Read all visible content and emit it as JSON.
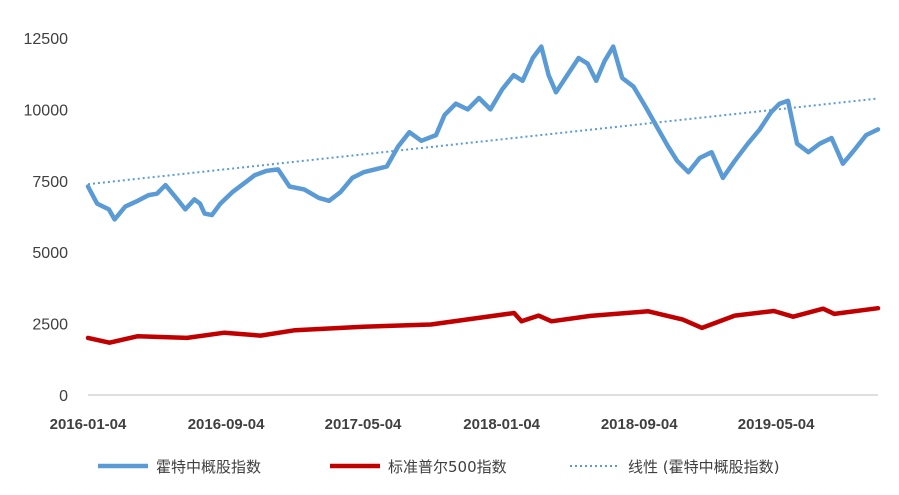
{
  "chart_data": {
    "type": "line",
    "y_ticks": [
      "0",
      "2500",
      "5000",
      "7500",
      "10000",
      "12500"
    ],
    "ylim": [
      0,
      12500
    ],
    "xlim": [
      "2016-01-04",
      "2019-10-31"
    ],
    "x_ticks": [
      "2016-01-04",
      "2016-09-04",
      "2017-05-04",
      "2018-01-04",
      "2018-09-04",
      "2019-05-04"
    ],
    "grid": false,
    "legend_position": "bottom",
    "series": [
      {
        "name": "霍特中概股指数",
        "color": "#5B9BD5",
        "style": "solid",
        "points": [
          [
            "2016-01-04",
            7300
          ],
          [
            "2016-01-20",
            6700
          ],
          [
            "2016-02-10",
            6500
          ],
          [
            "2016-02-20",
            6150
          ],
          [
            "2016-03-10",
            6600
          ],
          [
            "2016-04-01",
            6800
          ],
          [
            "2016-04-20",
            7000
          ],
          [
            "2016-05-05",
            7050
          ],
          [
            "2016-05-20",
            7350
          ],
          [
            "2016-06-10",
            6850
          ],
          [
            "2016-06-24",
            6500
          ],
          [
            "2016-07-10",
            6850
          ],
          [
            "2016-07-20",
            6700
          ],
          [
            "2016-07-28",
            6350
          ],
          [
            "2016-08-10",
            6300
          ],
          [
            "2016-08-25",
            6700
          ],
          [
            "2016-09-15",
            7100
          ],
          [
            "2016-10-05",
            7400
          ],
          [
            "2016-10-25",
            7700
          ],
          [
            "2016-11-15",
            7850
          ],
          [
            "2016-12-05",
            7900
          ],
          [
            "2016-12-25",
            7300
          ],
          [
            "2017-01-20",
            7200
          ],
          [
            "2017-02-15",
            6900
          ],
          [
            "2017-03-05",
            6800
          ],
          [
            "2017-03-25",
            7100
          ],
          [
            "2017-04-15",
            7600
          ],
          [
            "2017-05-05",
            7800
          ],
          [
            "2017-05-25",
            7900
          ],
          [
            "2017-06-15",
            8000
          ],
          [
            "2017-07-05",
            8700
          ],
          [
            "2017-07-25",
            9200
          ],
          [
            "2017-08-15",
            8900
          ],
          [
            "2017-09-10",
            9100
          ],
          [
            "2017-09-25",
            9800
          ],
          [
            "2017-10-15",
            10200
          ],
          [
            "2017-11-05",
            10000
          ],
          [
            "2017-11-25",
            10400
          ],
          [
            "2017-12-15",
            10000
          ],
          [
            "2018-01-05",
            10700
          ],
          [
            "2018-01-25",
            11200
          ],
          [
            "2018-02-10",
            11000
          ],
          [
            "2018-02-28",
            11800
          ],
          [
            "2018-03-15",
            12200
          ],
          [
            "2018-03-28",
            11200
          ],
          [
            "2018-04-10",
            10600
          ],
          [
            "2018-04-30",
            11200
          ],
          [
            "2018-05-20",
            11800
          ],
          [
            "2018-06-05",
            11600
          ],
          [
            "2018-06-20",
            11000
          ],
          [
            "2018-07-05",
            11700
          ],
          [
            "2018-07-20",
            12200
          ],
          [
            "2018-08-05",
            11100
          ],
          [
            "2018-08-25",
            10800
          ],
          [
            "2018-09-15",
            10100
          ],
          [
            "2018-10-05",
            9400
          ],
          [
            "2018-10-25",
            8700
          ],
          [
            "2018-11-10",
            8200
          ],
          [
            "2018-11-30",
            7800
          ],
          [
            "2018-12-20",
            8300
          ],
          [
            "2019-01-10",
            8500
          ],
          [
            "2019-01-30",
            7600
          ],
          [
            "2019-02-20",
            8200
          ],
          [
            "2019-03-15",
            8800
          ],
          [
            "2019-04-05",
            9300
          ],
          [
            "2019-04-25",
            9900
          ],
          [
            "2019-05-10",
            10200
          ],
          [
            "2019-05-25",
            10300
          ],
          [
            "2019-06-10",
            8800
          ],
          [
            "2019-06-30",
            8500
          ],
          [
            "2019-07-20",
            8800
          ],
          [
            "2019-08-10",
            9000
          ],
          [
            "2019-08-30",
            8100
          ],
          [
            "2019-09-20",
            8600
          ],
          [
            "2019-10-10",
            9100
          ],
          [
            "2019-10-31",
            9300
          ]
        ]
      },
      {
        "name": "标准普尔500指数",
        "color": "#C00000",
        "style": "solid",
        "points": [
          [
            "2016-01-04",
            2000
          ],
          [
            "2016-02-11",
            1830
          ],
          [
            "2016-04-01",
            2060
          ],
          [
            "2016-06-27",
            2000
          ],
          [
            "2016-09-01",
            2180
          ],
          [
            "2016-11-04",
            2080
          ],
          [
            "2017-01-04",
            2270
          ],
          [
            "2017-05-04",
            2390
          ],
          [
            "2017-09-01",
            2470
          ],
          [
            "2018-01-26",
            2870
          ],
          [
            "2018-02-08",
            2580
          ],
          [
            "2018-03-10",
            2780
          ],
          [
            "2018-04-02",
            2580
          ],
          [
            "2018-06-10",
            2770
          ],
          [
            "2018-09-20",
            2930
          ],
          [
            "2018-11-20",
            2640
          ],
          [
            "2018-12-24",
            2350
          ],
          [
            "2019-02-20",
            2780
          ],
          [
            "2019-04-30",
            2940
          ],
          [
            "2019-06-03",
            2740
          ],
          [
            "2019-07-26",
            3020
          ],
          [
            "2019-08-15",
            2840
          ],
          [
            "2019-10-31",
            3040
          ]
        ]
      },
      {
        "name": "线性 (霍特中概股指数)",
        "color": "#5B9BD5",
        "style": "dotted",
        "points": [
          [
            "2016-01-04",
            7380
          ],
          [
            "2019-10-31",
            10380
          ]
        ]
      }
    ]
  }
}
